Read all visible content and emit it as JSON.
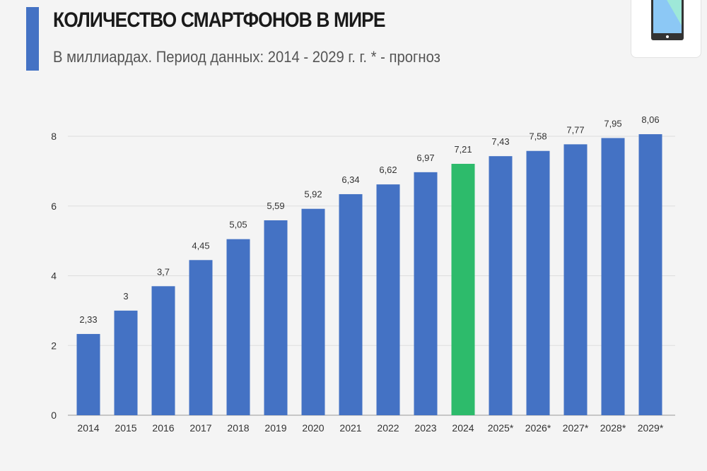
{
  "header": {
    "title": "КОЛИЧЕСТВО СМАРТФОНОВ В МИРЕ",
    "subtitle": "В миллиардах. Период данных: 2014 - 2029 г. г. * - прогноз",
    "icon": "smartphone-icon"
  },
  "chart_data": {
    "type": "bar",
    "title": "КОЛИЧЕСТВО СМАРТФОНОВ В МИРЕ",
    "subtitle": "В миллиардах. Период данных: 2014 - 2029 г. г. * - прогноз",
    "categories": [
      "2014",
      "2015",
      "2016",
      "2017",
      "2018",
      "2019",
      "2020",
      "2021",
      "2022",
      "2023",
      "2024",
      "2025*",
      "2026*",
      "2027*",
      "2028*",
      "2029*"
    ],
    "values": [
      2.33,
      3,
      3.7,
      4.45,
      5.05,
      5.59,
      5.92,
      6.34,
      6.62,
      6.97,
      7.21,
      7.43,
      7.58,
      7.77,
      7.95,
      8.06
    ],
    "data_labels": [
      "2,33",
      "3",
      "3,7",
      "4,45",
      "5,05",
      "5,59",
      "5,92",
      "6,34",
      "6,62",
      "6,97",
      "7,21",
      "7,43",
      "7,58",
      "7,77",
      "7,95",
      "8,06"
    ],
    "yticks": [
      "0",
      "2",
      "4",
      "6",
      "8"
    ],
    "ylim": [
      0,
      8
    ],
    "grid": true,
    "colors": {
      "bar": "#4472c4",
      "highlight": "#2dbb6b",
      "highlight_category": "2024"
    }
  }
}
